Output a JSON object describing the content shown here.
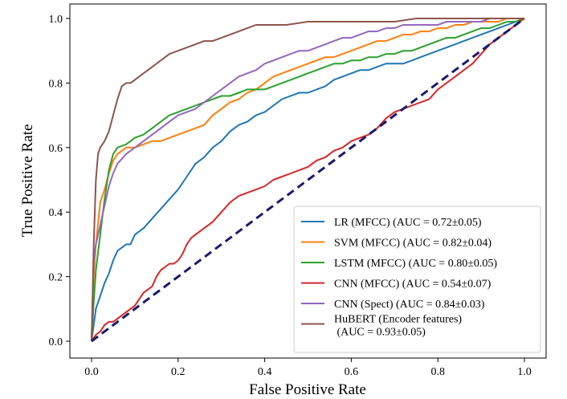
{
  "chart_data": {
    "type": "line",
    "title": "",
    "xlabel": "False Positive Rate",
    "ylabel": "True Positive Rate",
    "xlim": [
      0.0,
      1.0
    ],
    "ylim": [
      0.0,
      1.0
    ],
    "xticks": [
      "0.0",
      "0.2",
      "0.4",
      "0.6",
      "0.8",
      "1.0"
    ],
    "yticks": [
      "0.0",
      "0.2",
      "0.4",
      "0.6",
      "0.8",
      "1.0"
    ],
    "grid": false,
    "legend_position": "lower-right",
    "chance_line": {
      "color": "#1a1a6e",
      "x": [
        0,
        1
      ],
      "y": [
        0,
        1
      ]
    },
    "series": [
      {
        "name": "LR (MFCC) (AUC = 0.72±0.05)",
        "color": "#1f77b4",
        "x": [
          0,
          0.01,
          0.02,
          0.03,
          0.04,
          0.05,
          0.06,
          0.07,
          0.08,
          0.09,
          0.1,
          0.12,
          0.14,
          0.16,
          0.18,
          0.2,
          0.22,
          0.24,
          0.26,
          0.28,
          0.3,
          0.32,
          0.34,
          0.36,
          0.38,
          0.4,
          0.42,
          0.44,
          0.46,
          0.48,
          0.5,
          0.52,
          0.54,
          0.56,
          0.58,
          0.6,
          0.62,
          0.64,
          0.66,
          0.68,
          0.7,
          0.72,
          0.74,
          0.76,
          0.78,
          0.8,
          0.82,
          0.84,
          0.86,
          0.88,
          0.9,
          0.92,
          0.94,
          0.96,
          0.98,
          1.0
        ],
        "y": [
          0,
          0.1,
          0.14,
          0.18,
          0.21,
          0.25,
          0.28,
          0.29,
          0.3,
          0.3,
          0.33,
          0.35,
          0.38,
          0.41,
          0.44,
          0.47,
          0.51,
          0.55,
          0.57,
          0.6,
          0.62,
          0.65,
          0.67,
          0.68,
          0.7,
          0.71,
          0.73,
          0.75,
          0.76,
          0.77,
          0.77,
          0.78,
          0.79,
          0.81,
          0.82,
          0.83,
          0.84,
          0.84,
          0.85,
          0.86,
          0.86,
          0.86,
          0.87,
          0.88,
          0.89,
          0.9,
          0.91,
          0.92,
          0.93,
          0.94,
          0.95,
          0.96,
          0.97,
          0.98,
          0.99,
          1.0
        ]
      },
      {
        "name": "SVM (MFCC) (AUC = 0.82±0.04)",
        "color": "#ff7f0e",
        "x": [
          0,
          0.005,
          0.01,
          0.02,
          0.03,
          0.04,
          0.05,
          0.06,
          0.07,
          0.08,
          0.1,
          0.12,
          0.14,
          0.16,
          0.18,
          0.2,
          0.22,
          0.24,
          0.26,
          0.28,
          0.3,
          0.32,
          0.34,
          0.36,
          0.38,
          0.4,
          0.42,
          0.44,
          0.46,
          0.48,
          0.5,
          0.52,
          0.54,
          0.56,
          0.58,
          0.6,
          0.62,
          0.64,
          0.66,
          0.68,
          0.7,
          0.72,
          0.74,
          0.76,
          0.78,
          0.8,
          0.82,
          0.84,
          0.86,
          0.88,
          0.9,
          0.92,
          0.94,
          0.96,
          0.98,
          1.0
        ],
        "y": [
          0,
          0.2,
          0.3,
          0.43,
          0.47,
          0.52,
          0.56,
          0.58,
          0.59,
          0.6,
          0.6,
          0.61,
          0.62,
          0.62,
          0.63,
          0.64,
          0.65,
          0.66,
          0.67,
          0.7,
          0.72,
          0.74,
          0.75,
          0.77,
          0.78,
          0.8,
          0.82,
          0.83,
          0.84,
          0.85,
          0.86,
          0.87,
          0.88,
          0.88,
          0.89,
          0.9,
          0.91,
          0.92,
          0.93,
          0.93,
          0.94,
          0.95,
          0.95,
          0.96,
          0.96,
          0.97,
          0.97,
          0.98,
          0.98,
          0.99,
          0.99,
          0.99,
          0.99,
          1.0,
          1.0,
          1.0
        ]
      },
      {
        "name": "LSTM (MFCC) (AUC = 0.80±0.05)",
        "color": "#2ca02c",
        "x": [
          0,
          0.005,
          0.01,
          0.02,
          0.03,
          0.04,
          0.05,
          0.06,
          0.08,
          0.1,
          0.12,
          0.14,
          0.16,
          0.18,
          0.2,
          0.22,
          0.24,
          0.26,
          0.28,
          0.3,
          0.32,
          0.34,
          0.36,
          0.38,
          0.4,
          0.42,
          0.44,
          0.46,
          0.48,
          0.5,
          0.52,
          0.54,
          0.56,
          0.58,
          0.6,
          0.62,
          0.64,
          0.66,
          0.68,
          0.7,
          0.72,
          0.74,
          0.76,
          0.78,
          0.8,
          0.82,
          0.84,
          0.86,
          0.88,
          0.9,
          0.92,
          0.94,
          0.96,
          0.98,
          1.0
        ],
        "y": [
          0,
          0.12,
          0.22,
          0.33,
          0.44,
          0.53,
          0.58,
          0.6,
          0.61,
          0.63,
          0.64,
          0.66,
          0.68,
          0.7,
          0.71,
          0.72,
          0.73,
          0.74,
          0.75,
          0.76,
          0.76,
          0.77,
          0.78,
          0.78,
          0.78,
          0.79,
          0.8,
          0.81,
          0.82,
          0.83,
          0.84,
          0.85,
          0.86,
          0.86,
          0.87,
          0.87,
          0.88,
          0.88,
          0.89,
          0.89,
          0.9,
          0.9,
          0.91,
          0.92,
          0.93,
          0.94,
          0.94,
          0.95,
          0.96,
          0.97,
          0.97,
          0.98,
          0.99,
          0.99,
          1.0
        ]
      },
      {
        "name": "CNN (MFCC) (AUC = 0.54±0.07)",
        "color": "#d62728",
        "x": [
          0,
          0.01,
          0.02,
          0.03,
          0.04,
          0.05,
          0.06,
          0.07,
          0.08,
          0.09,
          0.1,
          0.11,
          0.12,
          0.13,
          0.14,
          0.15,
          0.16,
          0.17,
          0.18,
          0.19,
          0.2,
          0.21,
          0.22,
          0.23,
          0.24,
          0.26,
          0.28,
          0.3,
          0.32,
          0.34,
          0.36,
          0.38,
          0.4,
          0.42,
          0.44,
          0.46,
          0.48,
          0.5,
          0.52,
          0.54,
          0.56,
          0.58,
          0.6,
          0.62,
          0.64,
          0.66,
          0.68,
          0.7,
          0.72,
          0.74,
          0.76,
          0.78,
          0.8,
          0.82,
          0.84,
          0.86,
          0.88,
          0.9,
          0.92,
          0.94,
          0.96,
          0.98,
          1.0
        ],
        "y": [
          0,
          0.02,
          0.03,
          0.05,
          0.06,
          0.06,
          0.07,
          0.08,
          0.09,
          0.1,
          0.11,
          0.13,
          0.15,
          0.16,
          0.17,
          0.2,
          0.22,
          0.23,
          0.24,
          0.24,
          0.25,
          0.27,
          0.3,
          0.32,
          0.33,
          0.35,
          0.37,
          0.4,
          0.43,
          0.45,
          0.46,
          0.47,
          0.48,
          0.5,
          0.51,
          0.52,
          0.53,
          0.54,
          0.56,
          0.57,
          0.59,
          0.6,
          0.62,
          0.63,
          0.64,
          0.66,
          0.69,
          0.71,
          0.72,
          0.73,
          0.74,
          0.75,
          0.78,
          0.8,
          0.82,
          0.84,
          0.86,
          0.89,
          0.92,
          0.94,
          0.96,
          0.98,
          1.0
        ]
      },
      {
        "name": "CNN (Spect) (AUC = 0.84±0.03)",
        "color": "#9467bd",
        "x": [
          0,
          0.005,
          0.01,
          0.02,
          0.03,
          0.04,
          0.05,
          0.06,
          0.08,
          0.1,
          0.12,
          0.14,
          0.16,
          0.18,
          0.2,
          0.22,
          0.24,
          0.26,
          0.28,
          0.3,
          0.32,
          0.34,
          0.36,
          0.38,
          0.4,
          0.42,
          0.44,
          0.46,
          0.48,
          0.5,
          0.52,
          0.54,
          0.56,
          0.58,
          0.6,
          0.62,
          0.64,
          0.66,
          0.68,
          0.7,
          0.72,
          0.74,
          0.76,
          0.78,
          0.8,
          0.82,
          0.84,
          0.86,
          0.88,
          0.9,
          0.92,
          0.94,
          0.96,
          0.98,
          1.0
        ],
        "y": [
          0,
          0.25,
          0.3,
          0.36,
          0.42,
          0.48,
          0.52,
          0.55,
          0.58,
          0.6,
          0.62,
          0.64,
          0.66,
          0.68,
          0.7,
          0.71,
          0.72,
          0.74,
          0.76,
          0.78,
          0.8,
          0.82,
          0.83,
          0.84,
          0.86,
          0.87,
          0.88,
          0.89,
          0.9,
          0.9,
          0.91,
          0.92,
          0.93,
          0.94,
          0.94,
          0.95,
          0.96,
          0.96,
          0.97,
          0.97,
          0.98,
          0.98,
          0.98,
          0.98,
          0.98,
          0.99,
          0.99,
          0.99,
          0.99,
          0.99,
          1.0,
          1.0,
          1.0,
          1.0,
          1.0
        ]
      },
      {
        "name": "HuBERT (Encoder features)\n (AUC = 0.93±0.05)",
        "color": "#8c564b",
        "x": [
          0,
          0.005,
          0.01,
          0.015,
          0.02,
          0.03,
          0.04,
          0.05,
          0.06,
          0.07,
          0.08,
          0.09,
          0.1,
          0.12,
          0.14,
          0.16,
          0.18,
          0.2,
          0.22,
          0.24,
          0.26,
          0.28,
          0.3,
          0.32,
          0.34,
          0.36,
          0.38,
          0.4,
          0.45,
          0.5,
          0.55,
          0.6,
          0.65,
          0.7,
          0.75,
          0.8,
          0.85,
          0.9,
          0.95,
          1.0
        ],
        "y": [
          0,
          0.3,
          0.5,
          0.58,
          0.6,
          0.62,
          0.65,
          0.7,
          0.75,
          0.79,
          0.8,
          0.8,
          0.81,
          0.83,
          0.85,
          0.87,
          0.89,
          0.9,
          0.91,
          0.92,
          0.93,
          0.93,
          0.94,
          0.95,
          0.96,
          0.97,
          0.98,
          0.98,
          0.98,
          0.99,
          0.99,
          0.99,
          0.99,
          0.99,
          1.0,
          1.0,
          1.0,
          1.0,
          1.0,
          1.0
        ]
      }
    ]
  }
}
